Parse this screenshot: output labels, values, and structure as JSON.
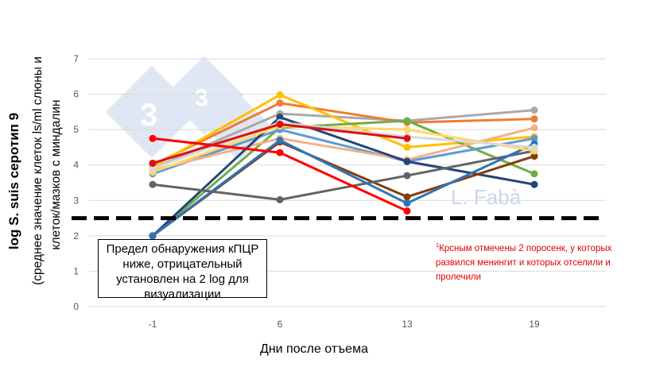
{
  "chart_data": {
    "type": "line",
    "categories": [
      "-1",
      "6",
      "13",
      "19"
    ],
    "ylim": [
      0,
      7
    ],
    "yticks": [
      "0",
      "1",
      "2",
      "3",
      "4",
      "5",
      "6",
      "7"
    ],
    "grid": true,
    "ylabel_main": "log S. suis серотип 9",
    "ylabel_sub": "(среднее значение  клеток ls/ml слюны и клеток/мазков с миндалин",
    "xlabel": "Дни после отъема",
    "threshold": 2.5,
    "series": [
      {
        "color": "#a9a9a9",
        "values": [
          3.9,
          5.45,
          5.25,
          5.55
        ]
      },
      {
        "color": "#ed7d31",
        "values": [
          4.0,
          5.75,
          5.2,
          5.3
        ]
      },
      {
        "color": "#ffc000",
        "values": [
          3.95,
          5.98,
          4.5,
          4.8
        ]
      },
      {
        "color": "#70ad47",
        "values": [
          2.0,
          5.05,
          5.25,
          3.75
        ]
      },
      {
        "color": "#5b9bd5",
        "values": [
          3.75,
          5.0,
          4.1,
          4.75
        ]
      },
      {
        "color": "#f4b183",
        "values": [
          3.85,
          4.75,
          4.15,
          5.05
        ]
      },
      {
        "color": "#264478",
        "values": [
          2.0,
          5.35,
          4.1,
          3.45
        ]
      },
      {
        "color": "#843c0c",
        "values": [
          2.0,
          4.65,
          3.1,
          4.25
        ]
      },
      {
        "color": "#636363",
        "values": [
          3.45,
          3.02,
          3.7,
          4.4
        ]
      },
      {
        "color": "#2e75b6",
        "values": [
          2.0,
          4.7,
          2.92,
          4.6
        ]
      },
      {
        "color": "#ffd966",
        "values": [
          3.8,
          5.1,
          5.0,
          4.4
        ]
      },
      {
        "color": "#d9d9d9",
        "values": [
          3.9,
          5.2,
          4.8,
          4.5
        ]
      },
      {
        "color": "#ff0000",
        "values": [
          4.75,
          4.35,
          2.7,
          null
        ]
      },
      {
        "color": "#e01010",
        "values": [
          4.05,
          5.15,
          4.75,
          null
        ]
      }
    ]
  },
  "note_box_text": "Предел обнаружения кПЦР ниже, отрицательный установлен на 2 log для визуализации",
  "red_note": {
    "sup": "1",
    "line1": "Крсным отмечены 2 поросенк, у которых",
    "line2a": "развился",
    "line2b": " менингит и которых отселили и",
    "line3": "пролечили"
  },
  "watermark": {
    "name": "L. Fabà",
    "mark": "3"
  }
}
